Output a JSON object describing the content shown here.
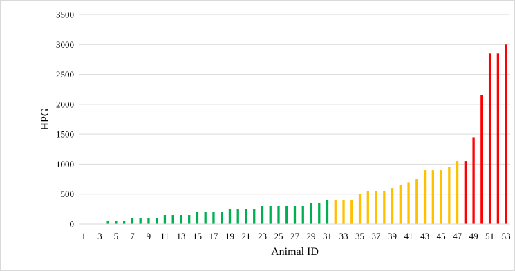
{
  "chart_data": {
    "type": "bar",
    "title": "",
    "xlabel": "Animal ID",
    "ylabel": "HPG",
    "ylim": [
      0,
      3500
    ],
    "yticks": [
      0,
      500,
      1000,
      1500,
      2000,
      2500,
      3000,
      3500
    ],
    "xtick_labels": [
      "1",
      "3",
      "5",
      "7",
      "9",
      "11",
      "13",
      "15",
      "17",
      "19",
      "21",
      "23",
      "25",
      "27",
      "29",
      "31",
      "33",
      "35",
      "37",
      "39",
      "41",
      "43",
      "45",
      "47",
      "49",
      "51",
      "53"
    ],
    "grid": true,
    "legend": "none",
    "categories": [
      1,
      2,
      3,
      4,
      5,
      6,
      7,
      8,
      9,
      10,
      11,
      12,
      13,
      14,
      15,
      16,
      17,
      18,
      19,
      20,
      21,
      22,
      23,
      24,
      25,
      26,
      27,
      28,
      29,
      30,
      31,
      32,
      33,
      34,
      35,
      36,
      37,
      38,
      39,
      40,
      41,
      42,
      43,
      44,
      45,
      46,
      47,
      48,
      49,
      50,
      51,
      52,
      53
    ],
    "values": [
      0,
      0,
      0,
      50,
      50,
      50,
      100,
      100,
      100,
      100,
      150,
      150,
      150,
      150,
      200,
      200,
      200,
      200,
      250,
      250,
      250,
      250,
      300,
      300,
      300,
      300,
      300,
      300,
      350,
      350,
      400,
      400,
      400,
      400,
      500,
      550,
      550,
      550,
      600,
      650,
      700,
      750,
      900,
      900,
      900,
      950,
      1050,
      1050,
      1450,
      2150,
      2850,
      2850,
      3000
    ],
    "bar_color_groups": [
      {
        "from_id": 1,
        "to_id": 31,
        "color": "#00b050"
      },
      {
        "from_id": 32,
        "to_id": 47,
        "color": "#ffc000"
      },
      {
        "from_id": 48,
        "to_id": 53,
        "color": "#ff0000"
      }
    ],
    "gridline_color": "#d9d9d9"
  }
}
